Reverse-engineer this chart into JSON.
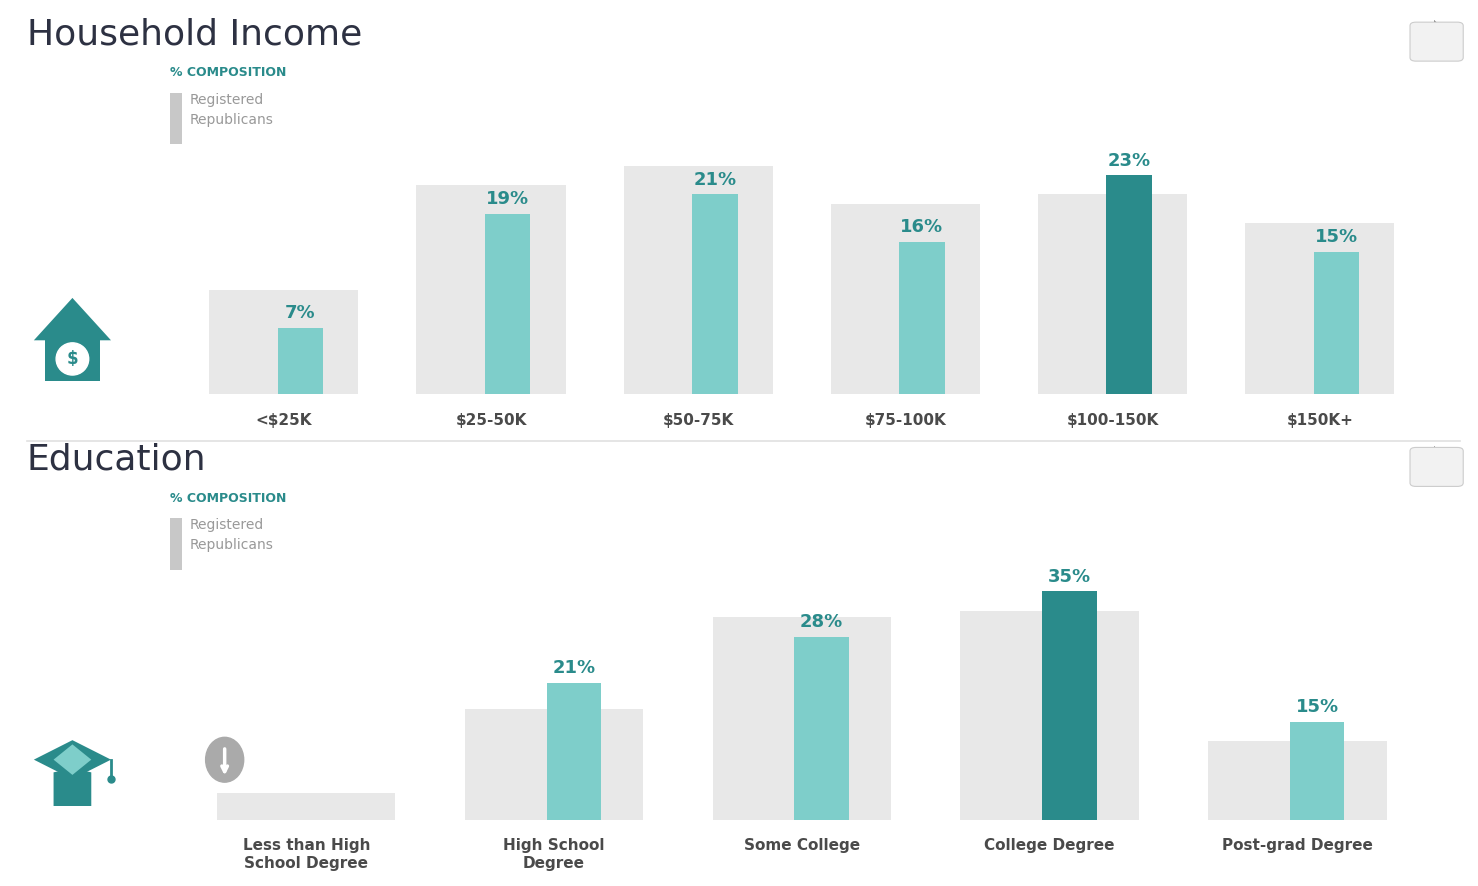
{
  "income_title": "Household Income",
  "education_title": "Education",
  "pct_composition_label": "% COMPOSITION",
  "legend_label": "Registered\nRepublicans",
  "income_categories": [
    "<$25K",
    "$25-50K",
    "$50-75K",
    "$75-100K",
    "$100-150K",
    "$150K+"
  ],
  "income_values": [
    7,
    19,
    21,
    16,
    23,
    15
  ],
  "income_bg_values": [
    11,
    22,
    24,
    20,
    21,
    18
  ],
  "income_highlight_idx": 4,
  "education_categories": [
    "Less than High\nSchool Degree",
    "High School\nDegree",
    "Some College",
    "College Degree",
    "Post-grad Degree"
  ],
  "education_values": [
    0,
    21,
    28,
    35,
    15
  ],
  "education_bg_values": [
    4,
    17,
    31,
    32,
    12
  ],
  "education_highlight_idx": 3,
  "color_light_teal": "#7ececa",
  "color_dark_teal": "#2a8b8b",
  "color_bg_bar": "#e8e8e8",
  "color_pct_label": "#2a8b8b",
  "color_legend_text": "#999999",
  "color_title": "#2d3142",
  "color_category_text": "#4a4a4a",
  "background_color": "#ffffff",
  "divider_color": "#e0e0e0"
}
